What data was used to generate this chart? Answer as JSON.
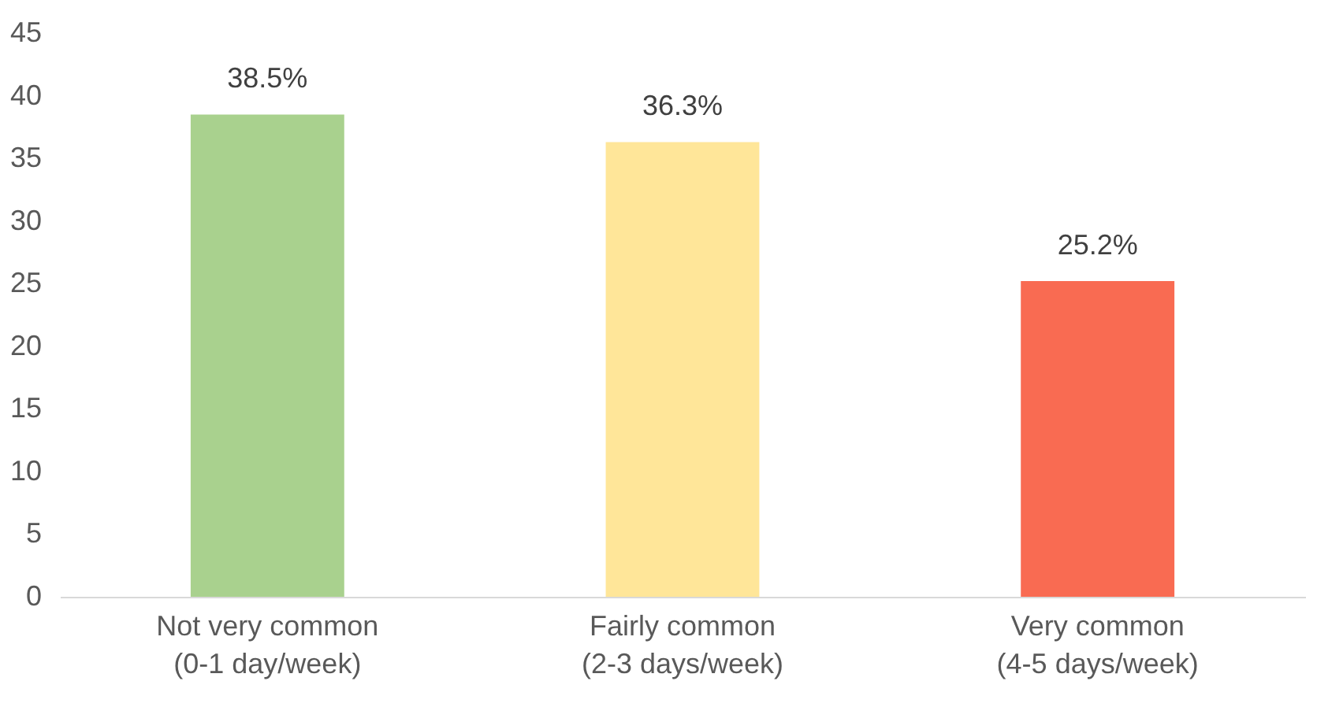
{
  "chart_data": {
    "type": "bar",
    "categories": [
      "Not very common\n(0-1 day/week)",
      "Fairly common\n(2-3 days/week)",
      "Very common\n(4-5 days/week)"
    ],
    "values": [
      38.5,
      36.3,
      25.2
    ],
    "colors": [
      "#a9d18e",
      "#ffe699",
      "#f96b52"
    ],
    "value_labels": [
      "38.5%",
      "36.3%",
      "25.2%"
    ],
    "ylim": [
      0,
      45
    ],
    "yticks": [
      0,
      5,
      10,
      15,
      20,
      25,
      30,
      35,
      40,
      45
    ],
    "grid": false
  }
}
